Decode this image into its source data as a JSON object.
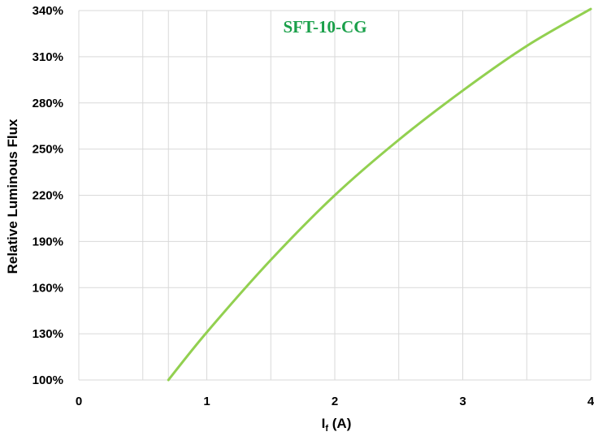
{
  "chart_data": {
    "type": "line",
    "xlabel": "If (A)",
    "xlabel_main": "I",
    "xlabel_sub": "f",
    "xlabel_unit": " (A)",
    "ylabel": "Relative Luminous Flux",
    "xlim": [
      0,
      4
    ],
    "ylim": [
      100,
      340
    ],
    "x_ticks": [
      0,
      1,
      2,
      3,
      4
    ],
    "x_tick_labels": [
      "0",
      "1",
      "2",
      "3",
      "4"
    ],
    "y_ticks": [
      100,
      130,
      160,
      190,
      220,
      250,
      280,
      310,
      340
    ],
    "y_tick_labels": [
      "100%",
      "130%",
      "160%",
      "190%",
      "220%",
      "250%",
      "280%",
      "310%",
      "340%"
    ],
    "x_grid": [
      0,
      0.5,
      0.7,
      1,
      1.5,
      2,
      2.5,
      3,
      3.5,
      4
    ],
    "grid": true,
    "series": [
      {
        "name": "SFT-10-CG",
        "color": "#92d050",
        "label_color": "#1aa04a",
        "x": [
          0.7,
          1.0,
          1.5,
          2.0,
          2.5,
          3.0,
          3.5,
          4.0
        ],
        "y": [
          100,
          131,
          178,
          220,
          256,
          288,
          317,
          341
        ]
      }
    ]
  }
}
